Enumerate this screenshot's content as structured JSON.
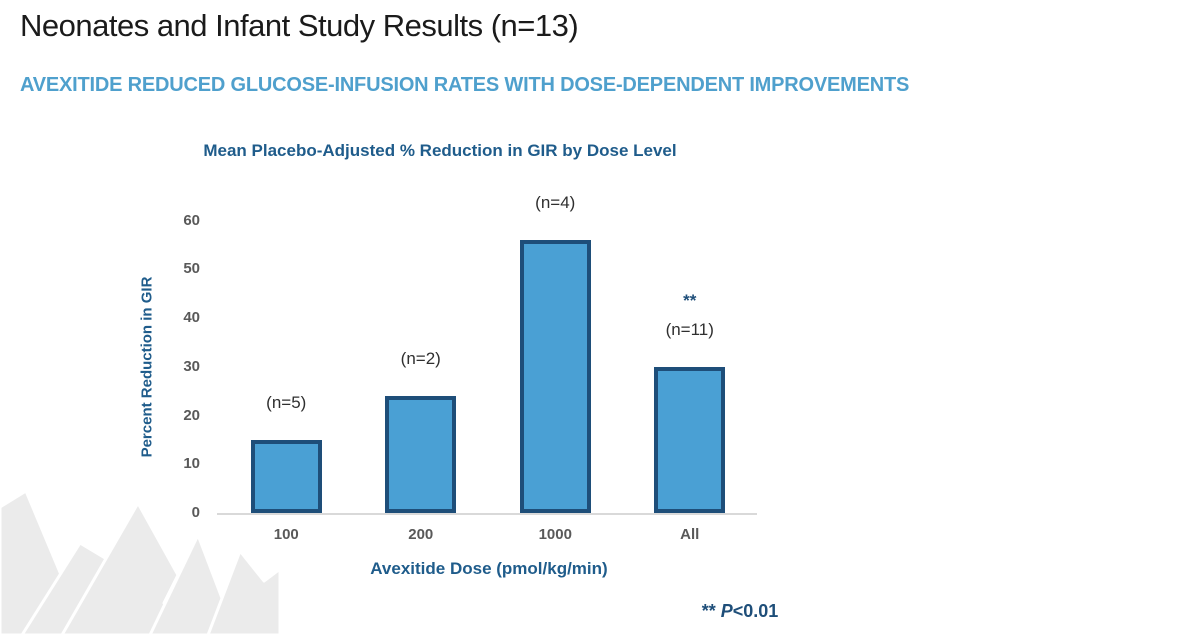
{
  "page": {
    "title": "Neonates and Infant Study Results (n=13)",
    "subtitle": "AVEXITIDE REDUCED GLUCOSE-INFUSION RATES WITH DOSE-DEPENDENT IMPROVEMENTS"
  },
  "chart_data": {
    "type": "bar",
    "title": "Mean Placebo-Adjusted % Reduction in GIR by Dose Level",
    "xlabel": "Avexitide Dose (pmol/kg/min)",
    "ylabel": "Percent Reduction in GIR",
    "ylim": [
      0,
      60
    ],
    "yticks": [
      0,
      10,
      20,
      30,
      40,
      50,
      60
    ],
    "grid": false,
    "legend": "none",
    "categories": [
      "100",
      "200",
      "1000",
      "All"
    ],
    "values": [
      15,
      24,
      56,
      30
    ],
    "bar_annotations": [
      "(n=5)",
      "(n=2)",
      "(n=4)",
      "(n=11)"
    ],
    "significance_markers": [
      "",
      "",
      "",
      "**"
    ],
    "footnote": {
      "stars": "**",
      "label": "P",
      "value": "<0.01"
    },
    "colors": {
      "bar_fill": "#4AA0D4",
      "bar_border": "#1E4E79",
      "tick_text": "#595959",
      "axis_title_text": "#1F5C8B",
      "subtitle_text": "#4FA0CD",
      "significance_text": "#1E4E79"
    }
  }
}
